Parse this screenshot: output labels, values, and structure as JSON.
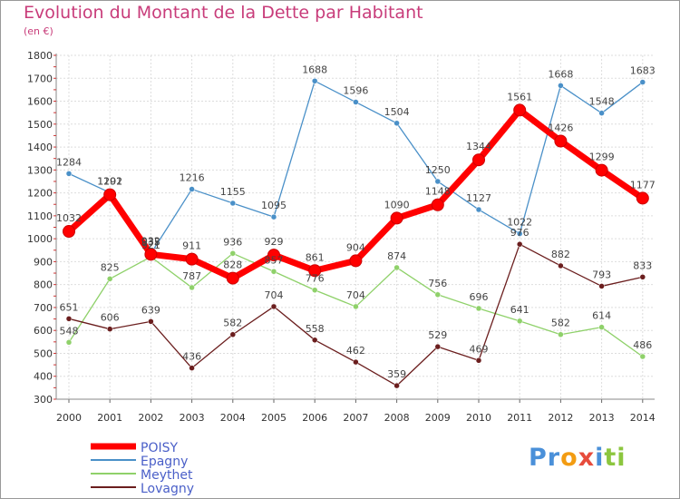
{
  "header": {
    "title": "Evolution du Montant de la Dette par Habitant",
    "unit": "(en €)"
  },
  "logo": {
    "text": "Proxiti",
    "letters": [
      {
        "ch": "P",
        "color": "#4a90d9"
      },
      {
        "ch": "r",
        "color": "#4a90d9"
      },
      {
        "ch": "o",
        "color": "#f39c12"
      },
      {
        "ch": "x",
        "color": "#e74c3c"
      },
      {
        "ch": "i",
        "color": "#4a90d9"
      },
      {
        "ch": "t",
        "color": "#8cc63f"
      },
      {
        "ch": "i",
        "color": "#8cc63f"
      }
    ]
  },
  "chart_data": {
    "type": "line",
    "title": "Evolution du Montant de la Dette par Habitant",
    "subtitle": "(en €)",
    "x": [
      "2000",
      "2001",
      "2002",
      "2003",
      "2004",
      "2005",
      "2006",
      "2007",
      "2008",
      "2009",
      "2010",
      "2011",
      "2012",
      "2013",
      "2014"
    ],
    "ylim": [
      300,
      1800
    ],
    "yticks": [
      300,
      400,
      500,
      600,
      700,
      800,
      900,
      1000,
      1100,
      1200,
      1300,
      1400,
      1500,
      1600,
      1700,
      1800
    ],
    "grid": true,
    "legend_position": "bottom-left",
    "series": [
      {
        "name": "Epagny",
        "color": "#4a90c8",
        "values": [
          1284,
          1201,
          935,
          1216,
          1155,
          1095,
          1688,
          1596,
          1504,
          1250,
          1127,
          1022,
          1668,
          1548,
          1683
        ]
      },
      {
        "name": "Meythet",
        "color": "#8fd16a",
        "values": [
          548,
          825,
          921,
          787,
          936,
          857,
          776,
          704,
          874,
          756,
          696,
          641,
          582,
          614,
          486
        ]
      },
      {
        "name": "Lovagny",
        "color": "#6b1e1e",
        "values": [
          651,
          606,
          639,
          436,
          582,
          704,
          558,
          462,
          359,
          529,
          469,
          976,
          882,
          793,
          833
        ]
      },
      {
        "name": "POISY",
        "color": "#ff0000",
        "values": [
          1032,
          1192,
          932,
          911,
          828,
          929,
          861,
          904,
          1090,
          1148,
          1344,
          1561,
          1426,
          1299,
          1177
        ]
      }
    ],
    "legend": [
      "POISY",
      "Epagny",
      "Meythet",
      "Lovagny"
    ]
  }
}
